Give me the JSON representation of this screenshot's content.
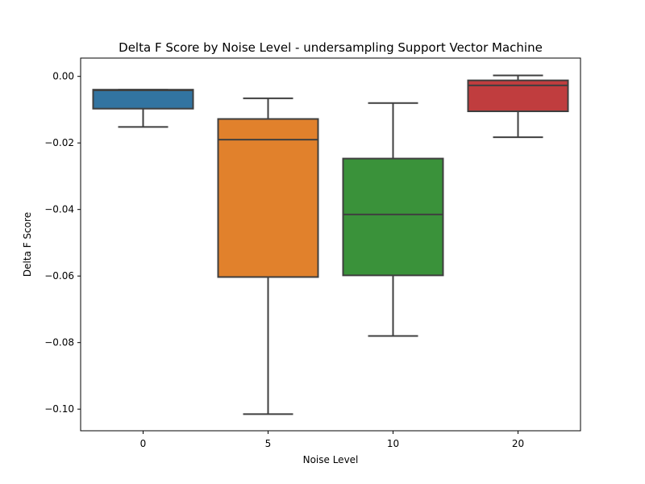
{
  "chart_data": {
    "type": "box",
    "title": "Delta F Score by Noise Level - undersampling Support Vector Machine",
    "xlabel": "Noise Level",
    "ylabel": "Delta F Score",
    "categories": [
      "0",
      "5",
      "10",
      "20"
    ],
    "ylim": [
      -0.1065,
      0.0055
    ],
    "yticks": [
      0.0,
      -0.02,
      -0.04,
      -0.06,
      -0.08,
      -0.1
    ],
    "ytick_labels": [
      "0.00",
      "−0.02",
      "−0.04",
      "−0.06",
      "−0.08",
      "−0.10"
    ],
    "boxes": [
      {
        "category": "0",
        "whisker_low": -0.0152,
        "q1": -0.0097,
        "median": -0.0042,
        "q3": -0.004,
        "whisker_high": -0.004,
        "color": "#3274a1"
      },
      {
        "category": "5",
        "whisker_low": -0.1015,
        "q1": -0.0603,
        "median": -0.019,
        "q3": -0.0128,
        "whisker_high": -0.0066,
        "color": "#e1812c"
      },
      {
        "category": "10",
        "whisker_low": -0.078,
        "q1": -0.0598,
        "median": -0.0415,
        "q3": -0.0247,
        "whisker_high": -0.008,
        "color": "#3a923a"
      },
      {
        "category": "20",
        "whisker_low": -0.0183,
        "q1": -0.0105,
        "median": -0.0027,
        "q3": -0.0012,
        "whisker_high": 0.0003,
        "color": "#c03d3e"
      }
    ],
    "grid": false,
    "legend": "none"
  }
}
